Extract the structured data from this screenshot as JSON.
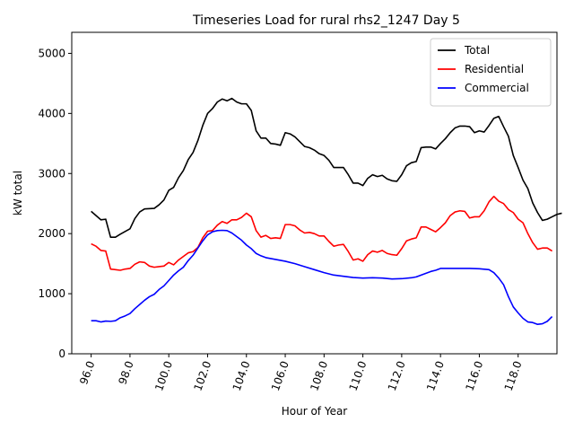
{
  "chart_data": {
    "type": "line",
    "title": "Timeseries Load for rural rhs2_1247  Day 5",
    "xlabel": "Hour of Year",
    "ylabel": "kW total",
    "xlim": [
      95.0,
      120.0
    ],
    "ylim": [
      0,
      5350
    ],
    "xticks": [
      96.0,
      98.0,
      100.0,
      102.0,
      104.0,
      106.0,
      108.0,
      110.0,
      112.0,
      114.0,
      116.0,
      118.0
    ],
    "xtick_labels": [
      "96.0",
      "98.0",
      "100.0",
      "102.0",
      "104.0",
      "106.0",
      "108.0",
      "110.0",
      "112.0",
      "114.0",
      "116.0",
      "118.0"
    ],
    "yticks": [
      0,
      1000,
      2000,
      3000,
      4000,
      5000
    ],
    "ytick_labels": [
      "0",
      "1000",
      "2000",
      "3000",
      "4000",
      "5000"
    ],
    "legend_position": "top-right",
    "series": [
      {
        "name": "Total",
        "color": "#000000",
        "points": [
          [
            96.0,
            2370
          ],
          [
            96.5,
            2230
          ],
          [
            96.75,
            2240
          ],
          [
            97.0,
            1940
          ],
          [
            97.25,
            1940
          ],
          [
            97.5,
            1990
          ],
          [
            98.0,
            2080
          ],
          [
            98.25,
            2250
          ],
          [
            98.5,
            2360
          ],
          [
            98.75,
            2410
          ],
          [
            99.25,
            2420
          ],
          [
            99.5,
            2480
          ],
          [
            99.75,
            2560
          ],
          [
            100.0,
            2720
          ],
          [
            100.25,
            2770
          ],
          [
            100.5,
            2930
          ],
          [
            100.75,
            3050
          ],
          [
            101.0,
            3230
          ],
          [
            101.25,
            3350
          ],
          [
            101.5,
            3550
          ],
          [
            101.75,
            3800
          ],
          [
            102.0,
            4000
          ],
          [
            102.25,
            4080
          ],
          [
            102.5,
            4190
          ],
          [
            102.75,
            4240
          ],
          [
            103.0,
            4210
          ],
          [
            103.25,
            4250
          ],
          [
            103.5,
            4190
          ],
          [
            103.75,
            4160
          ],
          [
            104.0,
            4160
          ],
          [
            104.25,
            4050
          ],
          [
            104.5,
            3710
          ],
          [
            104.75,
            3590
          ],
          [
            105.0,
            3590
          ],
          [
            105.25,
            3500
          ],
          [
            105.5,
            3490
          ],
          [
            105.75,
            3470
          ],
          [
            106.0,
            3680
          ],
          [
            106.25,
            3660
          ],
          [
            106.5,
            3610
          ],
          [
            106.75,
            3530
          ],
          [
            107.0,
            3450
          ],
          [
            107.25,
            3430
          ],
          [
            107.5,
            3390
          ],
          [
            107.75,
            3330
          ],
          [
            108.0,
            3300
          ],
          [
            108.25,
            3220
          ],
          [
            108.5,
            3100
          ],
          [
            109.0,
            3100
          ],
          [
            109.25,
            2980
          ],
          [
            109.5,
            2840
          ],
          [
            109.75,
            2840
          ],
          [
            110.0,
            2800
          ],
          [
            110.25,
            2920
          ],
          [
            110.5,
            2980
          ],
          [
            110.75,
            2950
          ],
          [
            111.0,
            2970
          ],
          [
            111.25,
            2910
          ],
          [
            111.5,
            2880
          ],
          [
            111.75,
            2870
          ],
          [
            112.0,
            2980
          ],
          [
            112.25,
            3130
          ],
          [
            112.5,
            3180
          ],
          [
            112.75,
            3200
          ],
          [
            113.0,
            3430
          ],
          [
            113.25,
            3440
          ],
          [
            113.5,
            3440
          ],
          [
            113.75,
            3410
          ],
          [
            114.0,
            3500
          ],
          [
            114.25,
            3580
          ],
          [
            114.5,
            3680
          ],
          [
            114.75,
            3760
          ],
          [
            115.0,
            3790
          ],
          [
            115.25,
            3790
          ],
          [
            115.5,
            3780
          ],
          [
            115.75,
            3680
          ],
          [
            116.0,
            3710
          ],
          [
            116.25,
            3690
          ],
          [
            116.5,
            3800
          ],
          [
            116.75,
            3920
          ],
          [
            117.0,
            3950
          ],
          [
            117.25,
            3780
          ],
          [
            117.5,
            3620
          ],
          [
            117.75,
            3300
          ],
          [
            118.0,
            3100
          ],
          [
            118.25,
            2890
          ],
          [
            118.5,
            2750
          ],
          [
            118.75,
            2510
          ],
          [
            119.0,
            2350
          ],
          [
            119.25,
            2220
          ],
          [
            119.5,
            2240
          ],
          [
            119.75,
            2280
          ],
          [
            120.0,
            2320
          ],
          [
            120.25,
            2340
          ]
        ]
      },
      {
        "name": "Residential",
        "color": "#ff0000",
        "points": [
          [
            96.0,
            1830
          ],
          [
            96.25,
            1790
          ],
          [
            96.5,
            1720
          ],
          [
            96.75,
            1710
          ],
          [
            97.0,
            1410
          ],
          [
            97.25,
            1400
          ],
          [
            97.5,
            1390
          ],
          [
            97.75,
            1410
          ],
          [
            98.0,
            1420
          ],
          [
            98.25,
            1490
          ],
          [
            98.5,
            1530
          ],
          [
            98.75,
            1520
          ],
          [
            99.0,
            1460
          ],
          [
            99.25,
            1440
          ],
          [
            99.5,
            1450
          ],
          [
            99.75,
            1460
          ],
          [
            100.0,
            1520
          ],
          [
            100.25,
            1480
          ],
          [
            100.5,
            1560
          ],
          [
            100.75,
            1620
          ],
          [
            101.0,
            1680
          ],
          [
            101.25,
            1700
          ],
          [
            101.5,
            1770
          ],
          [
            101.75,
            1930
          ],
          [
            102.0,
            2040
          ],
          [
            102.25,
            2050
          ],
          [
            102.5,
            2140
          ],
          [
            102.75,
            2200
          ],
          [
            103.0,
            2170
          ],
          [
            103.25,
            2230
          ],
          [
            103.5,
            2230
          ],
          [
            103.75,
            2270
          ],
          [
            104.0,
            2340
          ],
          [
            104.25,
            2280
          ],
          [
            104.5,
            2050
          ],
          [
            104.75,
            1940
          ],
          [
            105.0,
            1970
          ],
          [
            105.25,
            1920
          ],
          [
            105.5,
            1930
          ],
          [
            105.75,
            1920
          ],
          [
            106.0,
            2150
          ],
          [
            106.25,
            2150
          ],
          [
            106.5,
            2130
          ],
          [
            106.75,
            2060
          ],
          [
            107.0,
            2010
          ],
          [
            107.25,
            2020
          ],
          [
            107.5,
            2000
          ],
          [
            107.75,
            1960
          ],
          [
            108.0,
            1960
          ],
          [
            108.25,
            1870
          ],
          [
            108.5,
            1790
          ],
          [
            108.75,
            1810
          ],
          [
            109.0,
            1820
          ],
          [
            109.25,
            1700
          ],
          [
            109.5,
            1560
          ],
          [
            109.75,
            1580
          ],
          [
            110.0,
            1540
          ],
          [
            110.25,
            1650
          ],
          [
            110.5,
            1710
          ],
          [
            110.75,
            1690
          ],
          [
            111.0,
            1720
          ],
          [
            111.25,
            1670
          ],
          [
            111.5,
            1650
          ],
          [
            111.75,
            1640
          ],
          [
            112.0,
            1750
          ],
          [
            112.25,
            1880
          ],
          [
            112.5,
            1910
          ],
          [
            112.75,
            1930
          ],
          [
            113.0,
            2110
          ],
          [
            113.25,
            2110
          ],
          [
            113.5,
            2070
          ],
          [
            113.75,
            2030
          ],
          [
            114.0,
            2100
          ],
          [
            114.25,
            2180
          ],
          [
            114.5,
            2300
          ],
          [
            114.75,
            2360
          ],
          [
            115.0,
            2380
          ],
          [
            115.25,
            2370
          ],
          [
            115.5,
            2260
          ],
          [
            115.75,
            2280
          ],
          [
            116.0,
            2280
          ],
          [
            116.25,
            2380
          ],
          [
            116.5,
            2530
          ],
          [
            116.75,
            2620
          ],
          [
            117.0,
            2540
          ],
          [
            117.25,
            2500
          ],
          [
            117.5,
            2400
          ],
          [
            117.75,
            2350
          ],
          [
            118.0,
            2240
          ],
          [
            118.25,
            2180
          ],
          [
            118.5,
            2000
          ],
          [
            118.75,
            1850
          ],
          [
            119.0,
            1740
          ],
          [
            119.25,
            1760
          ],
          [
            119.5,
            1760
          ],
          [
            119.75,
            1710
          ]
        ]
      },
      {
        "name": "Commercial",
        "color": "#0000ff",
        "points": [
          [
            96.0,
            550
          ],
          [
            96.25,
            550
          ],
          [
            96.5,
            530
          ],
          [
            96.75,
            545
          ],
          [
            97.0,
            540
          ],
          [
            97.25,
            550
          ],
          [
            97.5,
            600
          ],
          [
            97.75,
            630
          ],
          [
            98.0,
            670
          ],
          [
            98.25,
            750
          ],
          [
            98.5,
            820
          ],
          [
            98.75,
            890
          ],
          [
            99.0,
            950
          ],
          [
            99.25,
            990
          ],
          [
            99.5,
            1070
          ],
          [
            99.75,
            1130
          ],
          [
            100.0,
            1220
          ],
          [
            100.25,
            1310
          ],
          [
            100.5,
            1380
          ],
          [
            100.75,
            1440
          ],
          [
            101.0,
            1550
          ],
          [
            101.25,
            1640
          ],
          [
            101.5,
            1760
          ],
          [
            101.75,
            1880
          ],
          [
            102.0,
            1980
          ],
          [
            102.25,
            2030
          ],
          [
            102.5,
            2050
          ],
          [
            102.75,
            2055
          ],
          [
            103.0,
            2050
          ],
          [
            103.25,
            2010
          ],
          [
            103.5,
            1950
          ],
          [
            103.75,
            1890
          ],
          [
            104.0,
            1810
          ],
          [
            104.25,
            1750
          ],
          [
            104.5,
            1670
          ],
          [
            104.75,
            1630
          ],
          [
            105.0,
            1600
          ],
          [
            105.5,
            1570
          ],
          [
            106.0,
            1540
          ],
          [
            106.5,
            1500
          ],
          [
            107.0,
            1450
          ],
          [
            107.5,
            1400
          ],
          [
            108.0,
            1350
          ],
          [
            108.5,
            1310
          ],
          [
            109.0,
            1290
          ],
          [
            109.5,
            1270
          ],
          [
            110.0,
            1260
          ],
          [
            110.5,
            1265
          ],
          [
            111.0,
            1260
          ],
          [
            111.5,
            1245
          ],
          [
            112.0,
            1250
          ],
          [
            112.5,
            1265
          ],
          [
            112.75,
            1280
          ],
          [
            113.0,
            1310
          ],
          [
            113.25,
            1340
          ],
          [
            113.5,
            1370
          ],
          [
            113.75,
            1390
          ],
          [
            114.0,
            1420
          ],
          [
            114.5,
            1420
          ],
          [
            115.0,
            1420
          ],
          [
            115.5,
            1420
          ],
          [
            116.0,
            1415
          ],
          [
            116.5,
            1400
          ],
          [
            116.75,
            1350
          ],
          [
            117.0,
            1260
          ],
          [
            117.25,
            1150
          ],
          [
            117.5,
            950
          ],
          [
            117.75,
            780
          ],
          [
            118.0,
            680
          ],
          [
            118.25,
            590
          ],
          [
            118.5,
            530
          ],
          [
            118.75,
            520
          ],
          [
            119.0,
            490
          ],
          [
            119.25,
            500
          ],
          [
            119.5,
            540
          ],
          [
            119.75,
            620
          ]
        ]
      }
    ]
  }
}
